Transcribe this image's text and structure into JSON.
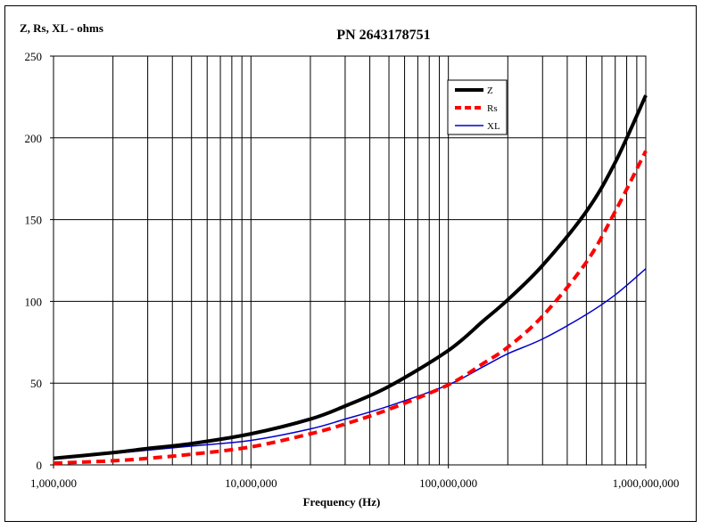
{
  "chart_data": {
    "type": "line",
    "title": "PN 2643178751",
    "ylabel": "Z, Rs, XL - ohms",
    "xlabel": "Frequency (Hz)",
    "xscale": "log",
    "xlim": [
      1000000,
      1000000000
    ],
    "ylim": [
      0,
      250
    ],
    "yticks": [
      0,
      50,
      100,
      150,
      200,
      250
    ],
    "ytick_labels": [
      "0",
      "50",
      "100",
      "150",
      "200",
      "250"
    ],
    "xticks": [
      1000000,
      10000000,
      100000000,
      1000000000
    ],
    "xtick_labels": [
      "1,000,000",
      "10,000,000",
      "100,000,000",
      "1,000,000,000"
    ],
    "grid": true,
    "legend_position": "top-right",
    "x": [
      1000000,
      2000000,
      3000000,
      5000000,
      10000000,
      20000000,
      30000000,
      50000000,
      100000000,
      150000000,
      200000000,
      300000000,
      500000000,
      700000000,
      1000000000
    ],
    "series": [
      {
        "name": "Z",
        "color": "#000000",
        "style": "solid",
        "width": 4,
        "values": [
          4,
          7.5,
          10,
          13,
          19,
          28,
          36,
          48,
          70,
          88,
          101,
          122,
          155,
          185,
          226
        ]
      },
      {
        "name": "Rs",
        "color": "#ff0000",
        "style": "dashed",
        "width": 4,
        "values": [
          1,
          2.5,
          4,
          6.5,
          11,
          19,
          25,
          34,
          49,
          62,
          72,
          91,
          124,
          155,
          192
        ]
      },
      {
        "name": "XL",
        "color": "#0000cc",
        "style": "solid",
        "width": 1.5,
        "values": [
          4,
          7,
          9,
          11.5,
          15,
          22,
          28,
          36,
          49,
          60,
          68,
          77,
          92,
          104,
          120
        ]
      }
    ]
  }
}
